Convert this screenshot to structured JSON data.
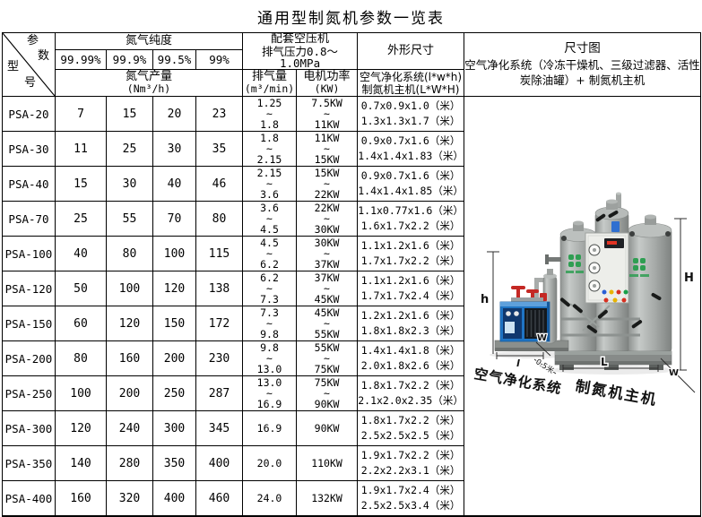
{
  "title": "通用型制氮机参数一览表",
  "table": {
    "corner": {
      "param1": "参",
      "param2": "数",
      "model1": "型",
      "model2": "号"
    },
    "purity_header": "氮气纯度",
    "purity_levels": [
      "99.99%",
      "99.9%",
      "99.5%",
      "99%"
    ],
    "output_header": {
      "line1": "氮气产量",
      "line2": "(Nm³/h)"
    },
    "compressor_header": {
      "line1": "配套空压机",
      "line2": "排气压力0.8～1.0MPa"
    },
    "exhaust_header": {
      "line1": "排气量",
      "line2": "(m³/min)"
    },
    "motor_header": {
      "line1": "电机功率",
      "line2": "(KW)"
    },
    "dims_header": "外形尺寸",
    "dims_sub": {
      "line1": "空气净化系统(l*w*h)",
      "line2": "制氮机主机(L*W*H)"
    },
    "rows": [
      {
        "model": "PSA-20",
        "outputs": [
          "7",
          "15",
          "20",
          "23"
        ],
        "exhaust": "1.25\n~\n1.8",
        "power": "7.5KW\n~\n11KW",
        "dims": "0.7x0.9x1.0（米）\n1.3x1.3x1.7（米）"
      },
      {
        "model": "PSA-30",
        "outputs": [
          "11",
          "25",
          "30",
          "35"
        ],
        "exhaust": "1.8\n~\n2.15",
        "power": "11KW\n~\n15KW",
        "dims": "0.9x0.7x1.6（米）\n1.4x1.4x1.83（米）"
      },
      {
        "model": "PSA-40",
        "outputs": [
          "15",
          "30",
          "40",
          "46"
        ],
        "exhaust": "2.15\n~\n3.6",
        "power": "15KW\n~\n22KW",
        "dims": "0.9x0.7x1.6（米）\n1.4x1.4x1.85（米）"
      },
      {
        "model": "PSA-70",
        "outputs": [
          "25",
          "55",
          "70",
          "80"
        ],
        "exhaust": "3.6\n~\n4.5",
        "power": "22KW\n~\n30KW",
        "dims": "1.1x0.77x1.6（米）\n1.6x1.7x2.2（米）"
      },
      {
        "model": "PSA-100",
        "outputs": [
          "40",
          "80",
          "100",
          "115"
        ],
        "exhaust": "4.5\n~\n6.2",
        "power": "30KW\n~\n37KW",
        "dims": "1.1x1.2x1.6（米）\n1.7x1.7x2.2（米）"
      },
      {
        "model": "PSA-120",
        "outputs": [
          "50",
          "100",
          "120",
          "138"
        ],
        "exhaust": "6.2\n~\n7.3",
        "power": "37KW\n~\n45KW",
        "dims": "1.1x1.2x1.6（米）\n1.7x1.7x2.4（米）"
      },
      {
        "model": "PSA-150",
        "outputs": [
          "60",
          "120",
          "150",
          "172"
        ],
        "exhaust": "7.3\n~\n9.8",
        "power": "45KW\n~\n55KW",
        "dims": "1.2x1.2x1.6（米）\n1.8x1.8x2.3（米）"
      },
      {
        "model": "PSA-200",
        "outputs": [
          "80",
          "160",
          "200",
          "230"
        ],
        "exhaust": "9.8\n~\n13.0",
        "power": "55KW\n~\n75KW",
        "dims": "1.4x1.4x1.8（米）\n2.0x1.8x2.6（米）"
      },
      {
        "model": "PSA-250",
        "outputs": [
          "100",
          "200",
          "250",
          "287"
        ],
        "exhaust": "13.0\n~\n16.9",
        "power": "75KW\n~\n90KW",
        "dims": "1.8x1.7x2.2（米）\n2.1x2.0x2.35（米）"
      },
      {
        "model": "PSA-300",
        "outputs": [
          "120",
          "240",
          "300",
          "345"
        ],
        "exhaust": "16.9",
        "power": "90KW",
        "dims": "1.8x1.7x2.2（米）\n2.5x2.5x2.5（米）"
      },
      {
        "model": "PSA-350",
        "outputs": [
          "140",
          "280",
          "350",
          "400"
        ],
        "exhaust": "20.0",
        "power": "110KW",
        "dims": "1.9x1.7x2.2（米）\n2.2x2.2x3.1（米）"
      },
      {
        "model": "PSA-400",
        "outputs": [
          "160",
          "320",
          "400",
          "460"
        ],
        "exhaust": "24.0",
        "power": "132KW",
        "dims": "1.9x1.7x2.4（米）\n2.5x2.5x3.4（米）"
      }
    ]
  },
  "diagram": {
    "header_title": "尺寸图",
    "header_subtitle": "空气净化系统（冷冻干燥机、三级过滤器、活性炭除油罐）+ 制氮机主机",
    "label_air_purification": "空气净化系统",
    "label_main_unit": "制氮机主机",
    "dim_labels": {
      "h": "h",
      "H": "H",
      "l": "l",
      "L": "L",
      "w_left": "W",
      "w_right": "W",
      "gap": "0.5米"
    },
    "colors": {
      "tank_gray": "#a7aba9",
      "dryer_blue": "#1f74c4",
      "valve_red": "#c42824",
      "logo_green": "#2f9e52"
    }
  }
}
